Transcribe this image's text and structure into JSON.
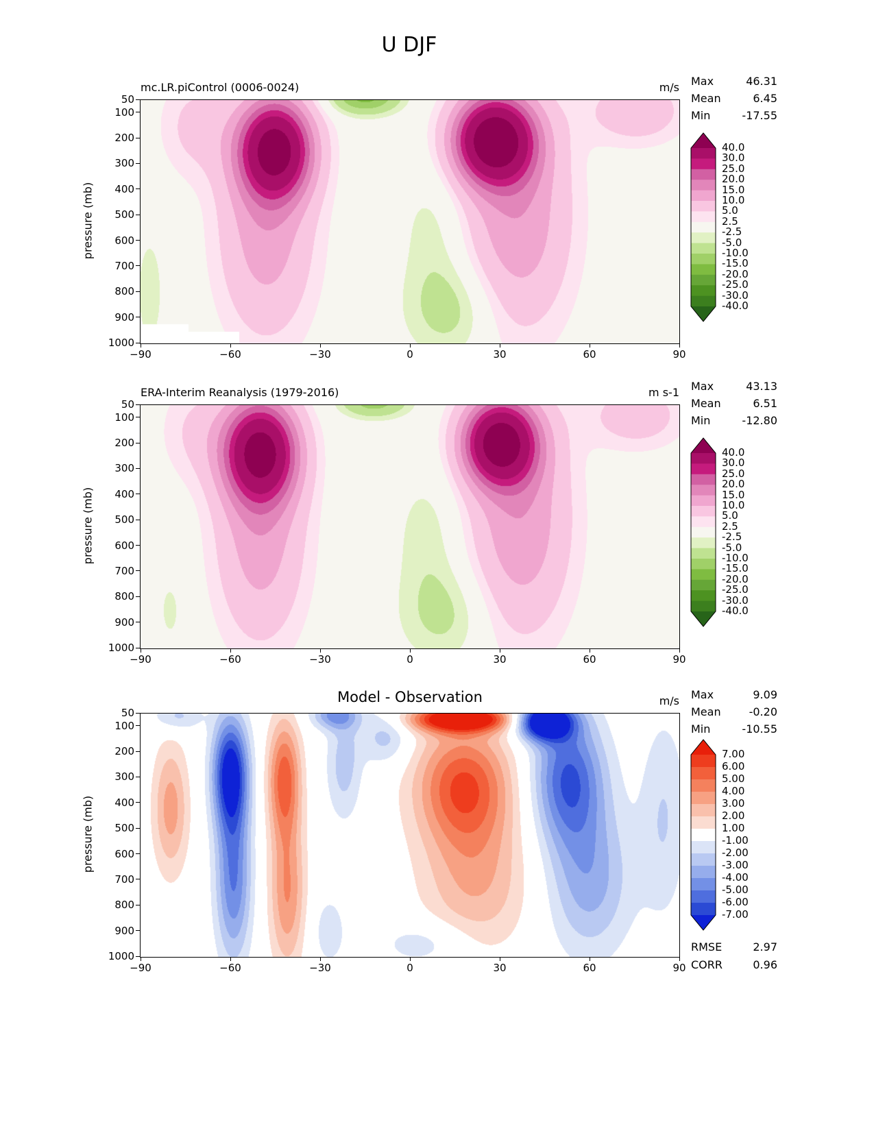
{
  "title": "U DJF",
  "chart_data": [
    {
      "type": "filled_contour",
      "title": "mc.LR.piControl (0006-0024)",
      "units": "m/s",
      "ylabel": "pressure (mb)",
      "stats": [
        {
          "label": "Max",
          "value": "46.31"
        },
        {
          "label": "Mean",
          "value": "6.45"
        },
        {
          "label": "Min",
          "value": "-17.55"
        }
      ],
      "xlim": [
        -90,
        90
      ],
      "ylim": [
        50,
        1000
      ],
      "x_ticks": [
        -90,
        -60,
        -30,
        0,
        30,
        60,
        90
      ],
      "x_tick_labels": [
        "−90",
        "−60",
        "−30",
        "0",
        "30",
        "60",
        "90"
      ],
      "y_ticks": [
        50,
        100,
        200,
        300,
        400,
        500,
        600,
        700,
        800,
        900,
        1000
      ],
      "y_tick_labels": [
        "50",
        "100",
        "200",
        "300",
        "400",
        "500",
        "600",
        "700",
        "800",
        "900",
        "1000"
      ],
      "levels": [
        -40,
        -30,
        -25,
        -20,
        -15,
        -10,
        -5,
        -2.5,
        2.5,
        5,
        10,
        15,
        20,
        25,
        30,
        40
      ],
      "level_labels": [
        "40.0",
        "30.0",
        "25.0",
        "20.0",
        "15.0",
        "10.0",
        "5.0",
        "2.5",
        "-2.5",
        "-5.0",
        "-10.0",
        "-15.0",
        "-20.0",
        "-25.0",
        "-30.0",
        "-40.0"
      ],
      "colormap": "PiYG_r",
      "colors": [
        "#276419",
        "#3c7f1e",
        "#4d9221",
        "#66a637",
        "#7fbc41",
        "#a0d068",
        "#bfe291",
        "#e1f1c4",
        "#f7f6f0",
        "#fde3f0",
        "#f9c6e1",
        "#f0a6cf",
        "#e286ba",
        "#d260a3",
        "#c51b7d",
        "#a90f68",
        "#8e0152"
      ],
      "field": [
        {
          "a": 46,
          "lat": 28,
          "slat": 13,
          "p": 205,
          "sp": 165
        },
        {
          "a": 14,
          "lat": 36,
          "slat": 18,
          "p": 500,
          "sp": 450
        },
        {
          "a": 41,
          "lat": -45,
          "slat": 12,
          "p": 240,
          "sp": 185
        },
        {
          "a": 13,
          "lat": -48,
          "slat": 16,
          "p": 550,
          "sp": 430
        },
        {
          "a": -17,
          "lat": -15,
          "slat": 11,
          "p": 35,
          "sp": 65
        },
        {
          "a": -7,
          "lat": 14,
          "slat": 15,
          "p": 870,
          "sp": 190
        },
        {
          "a": -4,
          "lat": 8,
          "slat": 11,
          "p": 560,
          "sp": 260
        },
        {
          "a": 9,
          "lat": 76,
          "slat": 16,
          "p": 90,
          "sp": 130
        },
        {
          "a": 6,
          "lat": -72,
          "slat": 12,
          "p": 150,
          "sp": 200
        },
        {
          "a": -4,
          "lat": -87,
          "slat": 5,
          "p": 800,
          "sp": 250
        }
      ],
      "mask_rects": [
        {
          "lat0": -90,
          "lat1": -74,
          "p0": 925,
          "p1": 1000
        },
        {
          "lat0": -74,
          "lat1": -57,
          "p0": 955,
          "p1": 1000
        }
      ]
    },
    {
      "type": "filled_contour",
      "title": "ERA-Interim Reanalysis (1979-2016)",
      "units": "m s-1",
      "ylabel": "pressure (mb)",
      "stats": [
        {
          "label": "Max",
          "value": "43.13"
        },
        {
          "label": "Mean",
          "value": "6.51"
        },
        {
          "label": "Min",
          "value": "-12.80"
        }
      ],
      "xlim": [
        -90,
        90
      ],
      "ylim": [
        50,
        1000
      ],
      "x_ticks": [
        -90,
        -60,
        -30,
        0,
        30,
        60,
        90
      ],
      "x_tick_labels": [
        "−90",
        "−60",
        "−30",
        "0",
        "30",
        "60",
        "90"
      ],
      "y_ticks": [
        50,
        100,
        200,
        300,
        400,
        500,
        600,
        700,
        800,
        900,
        1000
      ],
      "y_tick_labels": [
        "50",
        "100",
        "200",
        "300",
        "400",
        "500",
        "600",
        "700",
        "800",
        "900",
        "1000"
      ],
      "levels": [
        -40,
        -30,
        -25,
        -20,
        -15,
        -10,
        -5,
        -2.5,
        2.5,
        5,
        10,
        15,
        20,
        25,
        30,
        40
      ],
      "level_labels": [
        "40.0",
        "30.0",
        "25.0",
        "20.0",
        "15.0",
        "10.0",
        "5.0",
        "2.5",
        "-2.5",
        "-5.0",
        "-10.0",
        "-15.0",
        "-20.0",
        "-25.0",
        "-30.0",
        "-40.0"
      ],
      "colormap": "PiYG_r",
      "colors": [
        "#276419",
        "#3c7f1e",
        "#4d9221",
        "#66a637",
        "#7fbc41",
        "#a0d068",
        "#bfe291",
        "#e1f1c4",
        "#f7f6f0",
        "#fde3f0",
        "#f9c6e1",
        "#f0a6cf",
        "#e286ba",
        "#d260a3",
        "#c51b7d",
        "#a90f68",
        "#8e0152"
      ],
      "field": [
        {
          "a": 43,
          "lat": 30,
          "slat": 12,
          "p": 195,
          "sp": 160
        },
        {
          "a": 14,
          "lat": 37,
          "slat": 17,
          "p": 500,
          "sp": 450
        },
        {
          "a": 40,
          "lat": -50,
          "slat": 12,
          "p": 230,
          "sp": 190
        },
        {
          "a": 13,
          "lat": -50,
          "slat": 15,
          "p": 550,
          "sp": 430
        },
        {
          "a": -12.5,
          "lat": -12,
          "slat": 11,
          "p": 35,
          "sp": 60
        },
        {
          "a": -6,
          "lat": 12,
          "slat": 15,
          "p": 870,
          "sp": 190
        },
        {
          "a": -4,
          "lat": 6,
          "slat": 11,
          "p": 560,
          "sp": 260
        },
        {
          "a": 8,
          "lat": 76,
          "slat": 16,
          "p": 90,
          "sp": 130
        },
        {
          "a": 5,
          "lat": -72,
          "slat": 12,
          "p": 150,
          "sp": 200
        },
        {
          "a": -3,
          "lat": -80,
          "slat": 6,
          "p": 850,
          "sp": 200
        }
      ],
      "mask_rects": []
    },
    {
      "type": "filled_contour",
      "title": "Model - Observation",
      "units": "m/s",
      "ylabel": "pressure (mb)",
      "stats": [
        {
          "label": "Max",
          "value": "9.09"
        },
        {
          "label": "Mean",
          "value": "-0.20"
        },
        {
          "label": "Min",
          "value": "-10.55"
        }
      ],
      "metrics": [
        {
          "label": "RMSE",
          "value": "2.97"
        },
        {
          "label": "CORR",
          "value": "0.96"
        }
      ],
      "xlim": [
        -90,
        90
      ],
      "ylim": [
        50,
        1000
      ],
      "x_ticks": [
        -90,
        -60,
        -30,
        0,
        30,
        60,
        90
      ],
      "x_tick_labels": [
        "−90",
        "−60",
        "−30",
        "0",
        "30",
        "60",
        "90"
      ],
      "y_ticks": [
        50,
        100,
        200,
        300,
        400,
        500,
        600,
        700,
        800,
        900,
        1000
      ],
      "y_tick_labels": [
        "50",
        "100",
        "200",
        "300",
        "400",
        "500",
        "600",
        "700",
        "800",
        "900",
        "1000"
      ],
      "levels": [
        -7,
        -6,
        -5,
        -4,
        -3,
        -2,
        -1,
        1,
        2,
        3,
        4,
        5,
        6,
        7
      ],
      "level_labels": [
        "7.00",
        "6.00",
        "5.00",
        "4.00",
        "3.00",
        "2.00",
        "1.00",
        "-1.00",
        "-2.00",
        "-3.00",
        "-4.00",
        "-5.00",
        "-6.00",
        "-7.00"
      ],
      "colormap": "bwr",
      "colors": [
        "#0e22d6",
        "#2b4ad4",
        "#4f6ede",
        "#7390e6",
        "#96adec",
        "#b9c9f2",
        "#dbe4f7",
        "#ffffff",
        "#fbdcd1",
        "#f9c0ac",
        "#f7a183",
        "#f4815d",
        "#f2603b",
        "#ee3d1e",
        "#e8200a"
      ],
      "field": [
        {
          "a": 9.5,
          "lat": 17,
          "slat": 16,
          "p": 70,
          "sp": 50
        },
        {
          "a": 6,
          "lat": 18,
          "slat": 16,
          "p": 330,
          "sp": 230
        },
        {
          "a": 3,
          "lat": 22,
          "slat": 18,
          "p": 700,
          "sp": 280
        },
        {
          "a": -8,
          "lat": -60,
          "slat": 6,
          "p": 280,
          "sp": 220
        },
        {
          "a": -5,
          "lat": -59,
          "slat": 6,
          "p": 700,
          "sp": 320
        },
        {
          "a": 5.5,
          "lat": -42,
          "slat": 5.5,
          "p": 300,
          "sp": 230
        },
        {
          "a": 4,
          "lat": -41,
          "slat": 6,
          "p": 750,
          "sp": 300
        },
        {
          "a": 3.5,
          "lat": -80,
          "slat": 6,
          "p": 420,
          "sp": 260
        },
        {
          "a": -10,
          "lat": 45,
          "slat": 9,
          "p": 80,
          "sp": 70
        },
        {
          "a": -6,
          "lat": 53,
          "slat": 12,
          "p": 300,
          "sp": 260
        },
        {
          "a": -3.5,
          "lat": 60,
          "slat": 14,
          "p": 700,
          "sp": 300
        },
        {
          "a": -4,
          "lat": -25,
          "slat": 8,
          "p": 55,
          "sp": 55
        },
        {
          "a": -2.5,
          "lat": -22,
          "slat": 6,
          "p": 250,
          "sp": 220
        },
        {
          "a": -2.5,
          "lat": -8,
          "slat": 8,
          "p": 140,
          "sp": 110
        },
        {
          "a": -2,
          "lat": 85,
          "slat": 8,
          "p": 450,
          "sp": 400
        },
        {
          "a": -1.8,
          "lat": 5,
          "slat": 15,
          "p": 950,
          "sp": 90
        },
        {
          "a": -2.5,
          "lat": -78,
          "slat": 8,
          "p": 60,
          "sp": 60
        },
        {
          "a": -1.6,
          "lat": -27,
          "slat": 6,
          "p": 900,
          "sp": 150
        }
      ],
      "mask_rects": []
    }
  ]
}
